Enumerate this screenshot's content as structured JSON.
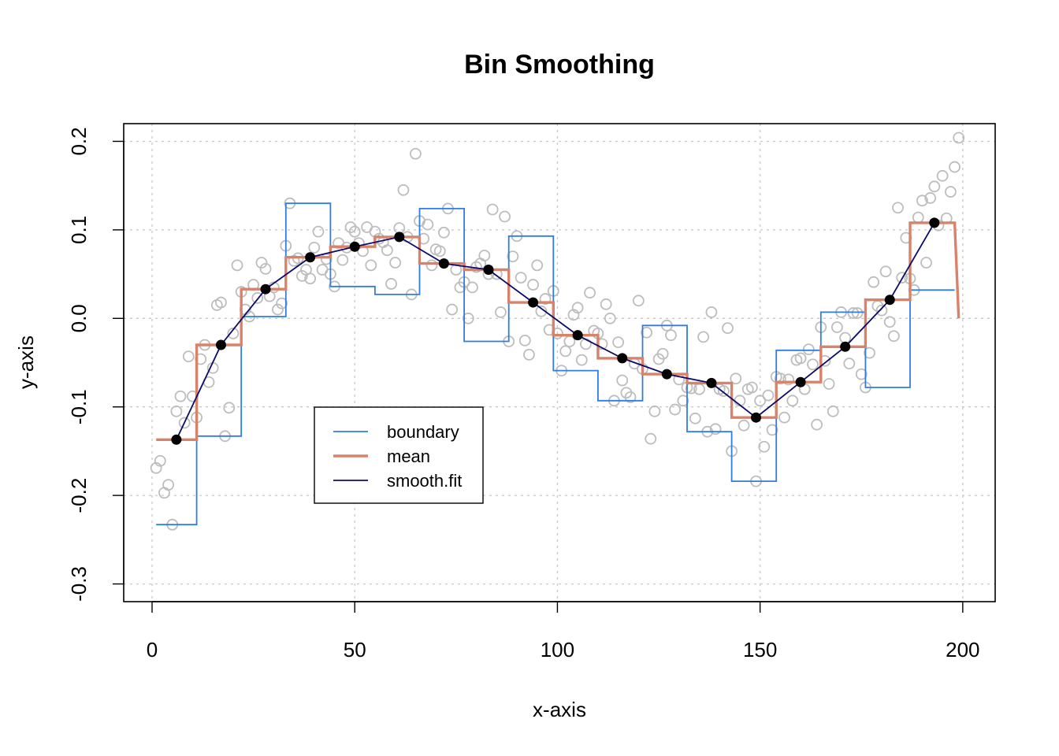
{
  "chart_data": {
    "type": "line",
    "title": "Bin Smoothing",
    "xlabel": "x-axis",
    "ylabel": "y-axis",
    "xlim": [
      -7,
      208
    ],
    "ylim": [
      -0.32,
      0.22
    ],
    "xticks": [
      0,
      50,
      100,
      150,
      200
    ],
    "yticks": [
      -0.3,
      -0.2,
      -0.1,
      0.0,
      0.1,
      0.2
    ],
    "xtick_labels": [
      "0",
      "50",
      "100",
      "150",
      "200"
    ],
    "ytick_labels": [
      "-0.3",
      "-0.2",
      "-0.1",
      "0.0",
      "0.1",
      "0.2"
    ],
    "grid": true,
    "legend_position": "center-left",
    "colors": {
      "points": "#bdbdbd",
      "boundary": "#2f7de1",
      "mean": "#d9826a",
      "smooth_fit": "#0b0b6b",
      "fit_points": "#000000"
    },
    "scatter": [
      [
        1,
        -0.169
      ],
      [
        2,
        -0.161
      ],
      [
        3,
        -0.197
      ],
      [
        4,
        -0.188
      ],
      [
        5,
        -0.233
      ],
      [
        6,
        -0.105
      ],
      [
        7,
        -0.088
      ],
      [
        8,
        -0.118
      ],
      [
        9,
        -0.043
      ],
      [
        10,
        -0.088
      ],
      [
        11,
        -0.112
      ],
      [
        12,
        -0.046
      ],
      [
        13,
        -0.03
      ],
      [
        14,
        -0.072
      ],
      [
        15,
        -0.056
      ],
      [
        16,
        0.015
      ],
      [
        17,
        0.018
      ],
      [
        18,
        -0.133
      ],
      [
        19,
        -0.101
      ],
      [
        20,
        -0.017
      ],
      [
        21,
        0.06
      ],
      [
        22,
        0.03
      ],
      [
        23,
        0.01
      ],
      [
        24,
        0.002
      ],
      [
        25,
        0.038
      ],
      [
        26,
        0.023
      ],
      [
        27,
        0.063
      ],
      [
        28,
        0.056
      ],
      [
        29,
        0.025
      ],
      [
        30,
        0.035
      ],
      [
        31,
        0.01
      ],
      [
        32,
        0.017
      ],
      [
        33,
        0.082
      ],
      [
        34,
        0.13
      ],
      [
        35,
        0.065
      ],
      [
        36,
        0.068
      ],
      [
        37,
        0.048
      ],
      [
        38,
        0.055
      ],
      [
        39,
        0.045
      ],
      [
        40,
        0.08
      ],
      [
        41,
        0.098
      ],
      [
        42,
        0.055
      ],
      [
        43,
        0.067
      ],
      [
        44,
        0.05
      ],
      [
        45,
        0.036
      ],
      [
        46,
        0.085
      ],
      [
        47,
        0.066
      ],
      [
        48,
        0.08
      ],
      [
        49,
        0.103
      ],
      [
        50,
        0.098
      ],
      [
        51,
        0.085
      ],
      [
        52,
        0.076
      ],
      [
        53,
        0.103
      ],
      [
        54,
        0.06
      ],
      [
        55,
        0.098
      ],
      [
        56,
        0.09
      ],
      [
        57,
        0.086
      ],
      [
        58,
        0.077
      ],
      [
        59,
        0.039
      ],
      [
        60,
        0.063
      ],
      [
        61,
        0.102
      ],
      [
        62,
        0.145
      ],
      [
        63,
        0.092
      ],
      [
        64,
        0.027
      ],
      [
        65,
        0.186
      ],
      [
        66,
        0.11
      ],
      [
        67,
        0.09
      ],
      [
        68,
        0.106
      ],
      [
        69,
        0.06
      ],
      [
        70,
        0.078
      ],
      [
        71,
        0.076
      ],
      [
        72,
        0.097
      ],
      [
        73,
        0.124
      ],
      [
        74,
        0.01
      ],
      [
        75,
        0.055
      ],
      [
        76,
        0.035
      ],
      [
        77,
        0.041
      ],
      [
        78,
        0.0
      ],
      [
        79,
        0.035
      ],
      [
        80,
        0.058
      ],
      [
        81,
        0.062
      ],
      [
        82,
        0.071
      ],
      [
        83,
        0.05
      ],
      [
        84,
        0.123
      ],
      [
        85,
        0.05
      ],
      [
        86,
        0.007
      ],
      [
        87,
        0.115
      ],
      [
        88,
        -0.026
      ],
      [
        89,
        0.07
      ],
      [
        90,
        0.093
      ],
      [
        91,
        0.046
      ],
      [
        92,
        -0.025
      ],
      [
        93,
        -0.041
      ],
      [
        94,
        0.038
      ],
      [
        95,
        0.06
      ],
      [
        96,
        0.008
      ],
      [
        97,
        0.022
      ],
      [
        98,
        -0.013
      ],
      [
        99,
        0.031
      ],
      [
        100,
        -0.017
      ],
      [
        101,
        -0.059
      ],
      [
        102,
        -0.037
      ],
      [
        103,
        -0.026
      ],
      [
        104,
        0.004
      ],
      [
        105,
        0.012
      ],
      [
        106,
        -0.047
      ],
      [
        107,
        -0.029
      ],
      [
        108,
        0.029
      ],
      [
        109,
        -0.014
      ],
      [
        110,
        -0.017
      ],
      [
        111,
        -0.029
      ],
      [
        112,
        0.016
      ],
      [
        113,
        0.0
      ],
      [
        114,
        -0.093
      ],
      [
        115,
        -0.027
      ],
      [
        116,
        -0.07
      ],
      [
        117,
        -0.084
      ],
      [
        118,
        -0.089
      ],
      [
        119,
        -0.051
      ],
      [
        120,
        0.02
      ],
      [
        121,
        -0.057
      ],
      [
        122,
        -0.016
      ],
      [
        123,
        -0.136
      ],
      [
        124,
        -0.105
      ],
      [
        125,
        -0.046
      ],
      [
        126,
        -0.04
      ],
      [
        127,
        -0.008
      ],
      [
        128,
        -0.019
      ],
      [
        129,
        -0.103
      ],
      [
        130,
        -0.069
      ],
      [
        131,
        -0.093
      ],
      [
        132,
        -0.078
      ],
      [
        133,
        -0.079
      ],
      [
        134,
        -0.113
      ],
      [
        135,
        -0.08
      ],
      [
        136,
        -0.021
      ],
      [
        137,
        -0.128
      ],
      [
        138,
        0.007
      ],
      [
        139,
        -0.125
      ],
      [
        140,
        -0.08
      ],
      [
        141,
        -0.082
      ],
      [
        142,
        -0.011
      ],
      [
        143,
        -0.15
      ],
      [
        144,
        -0.068
      ],
      [
        145,
        -0.093
      ],
      [
        146,
        -0.121
      ],
      [
        147,
        -0.08
      ],
      [
        148,
        -0.078
      ],
      [
        149,
        -0.184
      ],
      [
        150,
        -0.093
      ],
      [
        151,
        -0.145
      ],
      [
        152,
        -0.087
      ],
      [
        153,
        -0.126
      ],
      [
        154,
        -0.066
      ],
      [
        155,
        -0.068
      ],
      [
        156,
        -0.112
      ],
      [
        157,
        -0.069
      ],
      [
        158,
        -0.093
      ],
      [
        159,
        -0.047
      ],
      [
        160,
        -0.045
      ],
      [
        161,
        -0.08
      ],
      [
        162,
        -0.035
      ],
      [
        163,
        -0.052
      ],
      [
        164,
        -0.12
      ],
      [
        165,
        -0.01
      ],
      [
        166,
        -0.048
      ],
      [
        167,
        -0.074
      ],
      [
        168,
        -0.105
      ],
      [
        169,
        -0.01
      ],
      [
        170,
        0.007
      ],
      [
        171,
        -0.022
      ],
      [
        172,
        -0.051
      ],
      [
        173,
        0.006
      ],
      [
        174,
        0.006
      ],
      [
        175,
        -0.063
      ],
      [
        176,
        -0.078
      ],
      [
        177,
        -0.039
      ],
      [
        178,
        0.041
      ],
      [
        179,
        0.014
      ],
      [
        180,
        0.009
      ],
      [
        181,
        0.053
      ],
      [
        182,
        -0.004
      ],
      [
        183,
        -0.02
      ],
      [
        184,
        0.125
      ],
      [
        185,
        0.046
      ],
      [
        186,
        0.091
      ],
      [
        187,
        0.045
      ],
      [
        188,
        0.032
      ],
      [
        189,
        0.114
      ],
      [
        190,
        0.133
      ],
      [
        191,
        0.063
      ],
      [
        192,
        0.136
      ],
      [
        193,
        0.149
      ],
      [
        194,
        0.105
      ],
      [
        195,
        0.161
      ],
      [
        196,
        0.113
      ],
      [
        197,
        0.143
      ],
      [
        198,
        0.171
      ],
      [
        199,
        0.204
      ]
    ],
    "series": [
      {
        "name": "boundary",
        "style": "step",
        "x": [
          1,
          11,
          11,
          22,
          22,
          33,
          33,
          44,
          44,
          55,
          55,
          66,
          66,
          77,
          77,
          88,
          88,
          99,
          99,
          110,
          110,
          121,
          121,
          132,
          132,
          143,
          143,
          154,
          154,
          165,
          165,
          176,
          176,
          187,
          187,
          198
        ],
        "y": [
          -0.233,
          -0.233,
          -0.133,
          -0.133,
          0.002,
          0.002,
          0.13,
          0.13,
          0.036,
          0.036,
          0.027,
          0.027,
          0.124,
          0.124,
          -0.026,
          -0.026,
          0.093,
          0.093,
          -0.059,
          -0.059,
          -0.093,
          -0.093,
          -0.008,
          -0.008,
          -0.128,
          -0.128,
          -0.184,
          -0.184,
          -0.036,
          -0.036,
          0.007,
          0.007,
          -0.078,
          -0.078,
          0.032,
          0.032
        ]
      },
      {
        "name": "mean",
        "style": "step",
        "x": [
          1,
          11,
          11,
          22,
          22,
          33,
          33,
          44,
          44,
          55,
          55,
          66,
          66,
          77,
          77,
          88,
          88,
          99,
          99,
          110,
          110,
          121,
          121,
          132,
          132,
          143,
          143,
          154,
          154,
          165,
          165,
          176,
          176,
          187,
          187,
          198,
          199
        ],
        "y": [
          -0.137,
          -0.137,
          -0.03,
          -0.03,
          0.033,
          0.033,
          0.069,
          0.069,
          0.081,
          0.081,
          0.092,
          0.092,
          0.062,
          0.062,
          0.055,
          0.055,
          0.018,
          0.018,
          -0.019,
          -0.019,
          -0.045,
          -0.045,
          -0.063,
          -0.063,
          -0.073,
          -0.073,
          -0.112,
          -0.112,
          -0.072,
          -0.072,
          -0.032,
          -0.032,
          0.021,
          0.021,
          0.108,
          0.108,
          0.0
        ]
      },
      {
        "name": "smooth.fit",
        "style": "line-points",
        "x": [
          6,
          17,
          28,
          39,
          50,
          61,
          72,
          83,
          94,
          105,
          116,
          127,
          138,
          149,
          160,
          171,
          182,
          193
        ],
        "y": [
          -0.137,
          -0.03,
          0.033,
          0.069,
          0.081,
          0.092,
          0.062,
          0.055,
          0.018,
          -0.019,
          -0.045,
          -0.063,
          -0.073,
          -0.112,
          -0.072,
          -0.032,
          0.021,
          0.108
        ]
      }
    ]
  }
}
